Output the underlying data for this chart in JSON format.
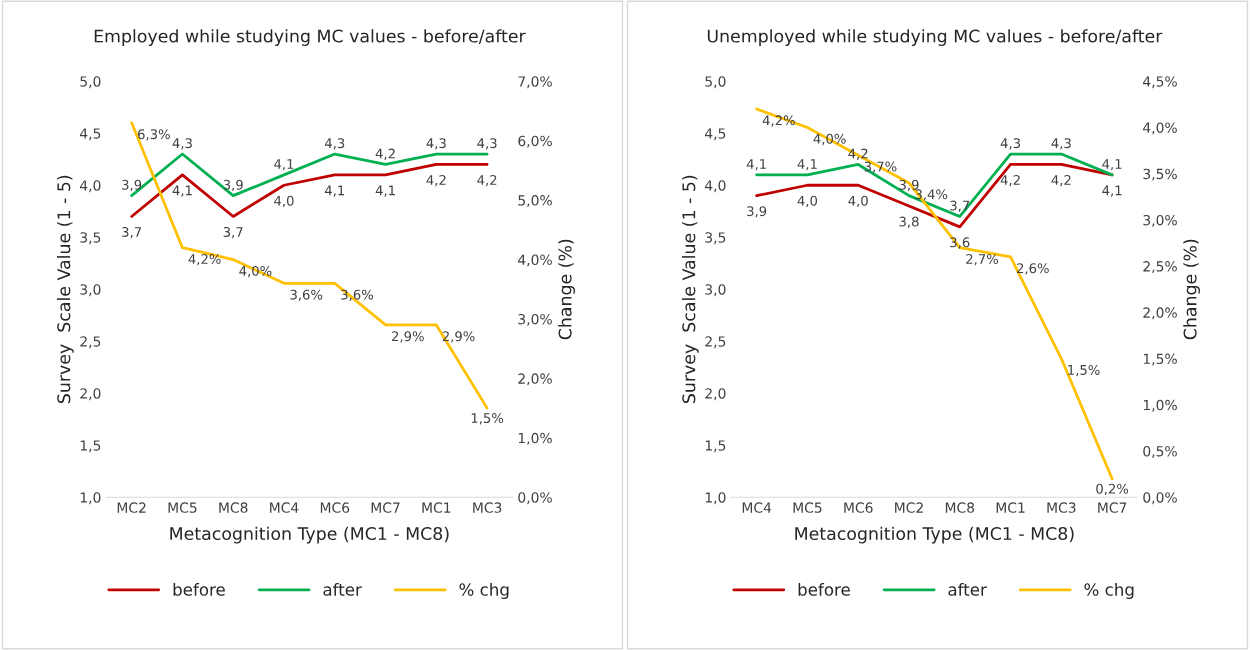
{
  "chart_data": [
    {
      "type": "line",
      "title": "Employed while studying MC values - before/after",
      "xlabel": "Metacognition Type (MC1 - MC8)",
      "ylabel": "Survey  Scale Value (1 - 5)",
      "y2label": "Change (%)",
      "categories": [
        "MC2",
        "MC5",
        "MC8",
        "MC4",
        "MC6",
        "MC7",
        "MC1",
        "MC3"
      ],
      "series": [
        {
          "name": "before",
          "color": "#c00000",
          "values": [
            3.7,
            4.1,
            3.7,
            4.0,
            4.1,
            4.1,
            4.2,
            4.2
          ],
          "value_labels": [
            "3,7",
            "4,1",
            "3,7",
            "4,0",
            "4,1",
            "4,1",
            "4,2",
            "4,2"
          ]
        },
        {
          "name": "after",
          "color": "#00b050",
          "values": [
            3.9,
            4.3,
            3.9,
            4.1,
            4.3,
            4.2,
            4.3,
            4.3
          ],
          "value_labels": [
            "3,9",
            "4,3",
            "3,9",
            "4,1",
            "4,3",
            "4,2",
            "4,3",
            "4,3"
          ]
        },
        {
          "name": "% chg",
          "color": "#ffc000",
          "axis": "y2",
          "values": [
            6.3,
            4.2,
            4.0,
            3.6,
            3.6,
            2.9,
            2.9,
            1.5
          ],
          "value_labels": [
            "6,3%",
            "4,2%",
            "4,0%",
            "3,6%",
            "3,6%",
            "2,9%",
            "2,9%",
            "1,5%"
          ]
        }
      ],
      "ylim": [
        1.0,
        5.0
      ],
      "yticks": [
        {
          "value": 1.0,
          "label": "1,0"
        },
        {
          "value": 1.5,
          "label": "1,5"
        },
        {
          "value": 2.0,
          "label": "2,0"
        },
        {
          "value": 2.5,
          "label": "2,5"
        },
        {
          "value": 3.0,
          "label": "3,0"
        },
        {
          "value": 3.5,
          "label": "3,5"
        },
        {
          "value": 4.0,
          "label": "4,0"
        },
        {
          "value": 4.5,
          "label": "4,5"
        },
        {
          "value": 5.0,
          "label": "5,0"
        }
      ],
      "y2lim": [
        0,
        7
      ],
      "y2ticks": [
        {
          "value": 0,
          "label": "0,0%"
        },
        {
          "value": 1,
          "label": "1,0%"
        },
        {
          "value": 2,
          "label": "2,0%"
        },
        {
          "value": 3,
          "label": "3,0%"
        },
        {
          "value": 4,
          "label": "4,0%"
        },
        {
          "value": 5,
          "label": "5,0%"
        },
        {
          "value": 6,
          "label": "6,0%"
        },
        {
          "value": 7,
          "label": "7,0%"
        }
      ],
      "grid": false,
      "legend": "bottom"
    },
    {
      "type": "line",
      "title": "Unemployed while studying MC values - before/after",
      "xlabel": "Metacognition Type (MC1 - MC8)",
      "ylabel": "Survey  Scale Value (1 - 5)",
      "y2label": "Change (%)",
      "categories": [
        "MC4",
        "MC5",
        "MC6",
        "MC2",
        "MC8",
        "MC1",
        "MC3",
        "MC7"
      ],
      "series": [
        {
          "name": "before",
          "color": "#c00000",
          "values": [
            3.9,
            4.0,
            4.0,
            3.8,
            3.6,
            4.2,
            4.2,
            4.1
          ],
          "value_labels": [
            "3,9",
            "4,0",
            "4,0",
            "3,8",
            "3,6",
            "4,2",
            "4,2",
            "4,1"
          ]
        },
        {
          "name": "after",
          "color": "#00b050",
          "values": [
            4.1,
            4.1,
            4.2,
            3.9,
            3.7,
            4.3,
            4.3,
            4.1
          ],
          "value_labels": [
            "4,1",
            "4,1",
            "4,2",
            "3,9",
            "3,7",
            "4,3",
            "4,3",
            "4,1"
          ]
        },
        {
          "name": "% chg",
          "color": "#ffc000",
          "axis": "y2",
          "values": [
            4.2,
            4.0,
            3.7,
            3.4,
            2.7,
            2.6,
            1.5,
            0.2
          ],
          "value_labels": [
            "4,2%",
            "4,0%",
            "3,7%",
            "3,4%",
            "2,7%",
            "2,6%",
            "1,5%",
            "0,2%"
          ]
        }
      ],
      "ylim": [
        1.0,
        5.0
      ],
      "yticks": [
        {
          "value": 1.0,
          "label": "1,0"
        },
        {
          "value": 1.5,
          "label": "1,5"
        },
        {
          "value": 2.0,
          "label": "2,0"
        },
        {
          "value": 2.5,
          "label": "2,5"
        },
        {
          "value": 3.0,
          "label": "3,0"
        },
        {
          "value": 3.5,
          "label": "3,5"
        },
        {
          "value": 4.0,
          "label": "4,0"
        },
        {
          "value": 4.5,
          "label": "4,5"
        },
        {
          "value": 5.0,
          "label": "5,0"
        }
      ],
      "y2lim": [
        0,
        4.5
      ],
      "y2ticks": [
        {
          "value": 0,
          "label": "0,0%"
        },
        {
          "value": 0.5,
          "label": "0,5%"
        },
        {
          "value": 1.0,
          "label": "1,0%"
        },
        {
          "value": 1.5,
          "label": "1,5%"
        },
        {
          "value": 2.0,
          "label": "2,0%"
        },
        {
          "value": 2.5,
          "label": "2,5%"
        },
        {
          "value": 3.0,
          "label": "3,0%"
        },
        {
          "value": 3.5,
          "label": "3,5%"
        },
        {
          "value": 4.0,
          "label": "4,0%"
        },
        {
          "value": 4.5,
          "label": "4,5%"
        }
      ],
      "grid": false,
      "legend": "bottom"
    }
  ]
}
